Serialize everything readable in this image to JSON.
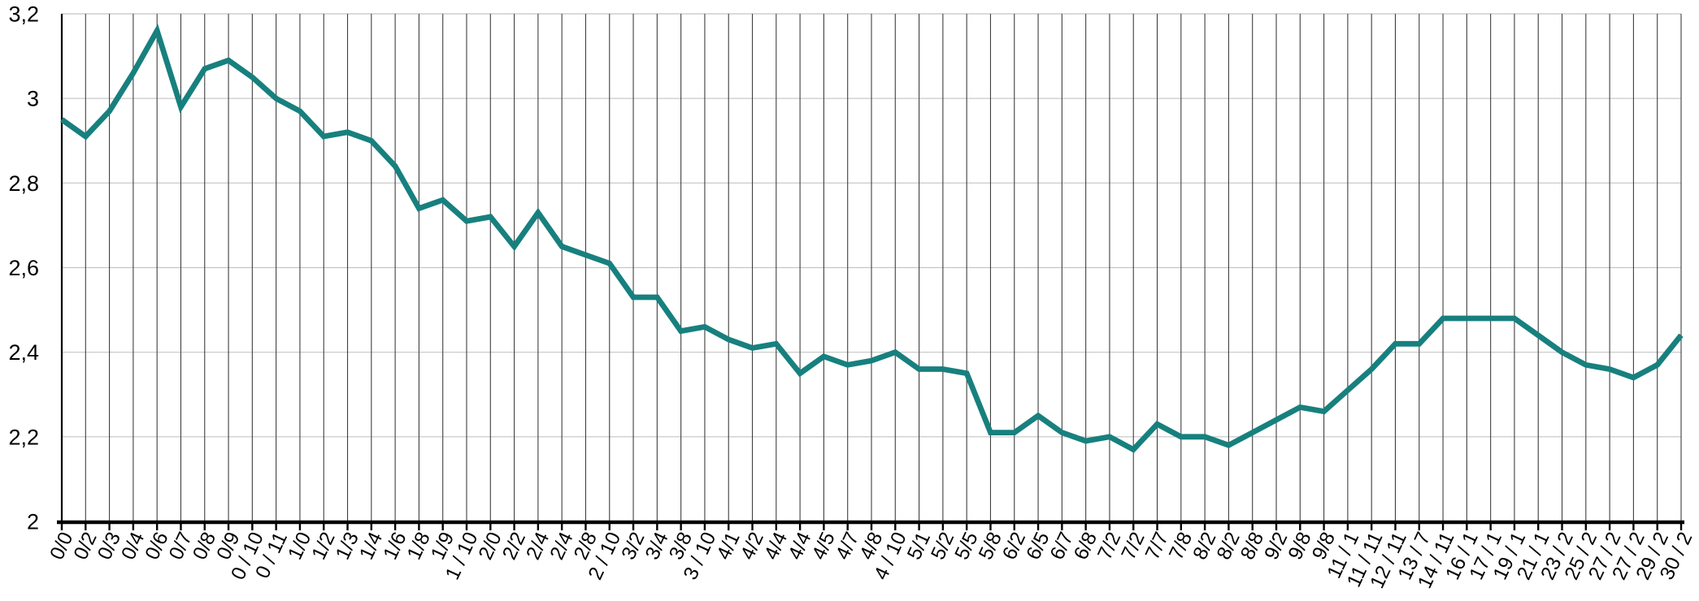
{
  "chart_data": {
    "type": "line",
    "title": "",
    "xlabel": "",
    "ylabel": "",
    "legend": "none",
    "ylim": [
      2,
      3.2
    ],
    "grid": {
      "vertical": true,
      "horizontal": true
    },
    "y_axis": {
      "tick_values": [
        2,
        2.2,
        2.4,
        2.6,
        2.8,
        3,
        3.2
      ],
      "tick_labels": [
        "2",
        "2,2",
        "2,4",
        "2,6",
        "2,8",
        "3",
        "3,2"
      ],
      "decimal_separator": ","
    },
    "categories": [
      "0/0",
      "0/2",
      "0/3",
      "0/4",
      "0/6",
      "0/7",
      "0/8",
      "0/9",
      "0 / 10",
      "0 / 11",
      "1/0",
      "1/2",
      "1/3",
      "1/4",
      "1/6",
      "1/8",
      "1/9",
      "1 / 10",
      "2/0",
      "2/2",
      "2/4",
      "2/4",
      "2/8",
      "2 / 10",
      "3/2",
      "3/4",
      "3/8",
      "3 / 10",
      "4/1",
      "4/2",
      "4/4",
      "4/4",
      "4/5",
      "4/7",
      "4/8",
      "4 / 10",
      "5/1",
      "5/2",
      "5/5",
      "5/8",
      "6/2",
      "6/5",
      "6/7",
      "6/8",
      "7/2",
      "7/2",
      "7/7",
      "7/8",
      "8/2",
      "8/2",
      "8/8",
      "9/2",
      "9/8",
      "9/8",
      "11 / 1",
      "11 / 11",
      "12 / 11",
      "13 / 7",
      "14 / 11",
      "16 / 1",
      "17 / 1",
      "19 / 1",
      "21 / 1",
      "23 / 2",
      "25 / 2",
      "27 / 2",
      "27 / 2",
      "29 / 2",
      "30 / 2"
    ],
    "values": [
      2.95,
      2.91,
      2.97,
      3.06,
      3.16,
      2.98,
      3.07,
      3.09,
      3.05,
      3.0,
      2.97,
      2.91,
      2.92,
      2.9,
      2.84,
      2.74,
      2.76,
      2.71,
      2.72,
      2.65,
      2.73,
      2.65,
      2.63,
      2.61,
      2.53,
      2.53,
      2.45,
      2.46,
      2.43,
      2.41,
      2.42,
      2.35,
      2.39,
      2.37,
      2.38,
      2.4,
      2.36,
      2.36,
      2.35,
      2.21,
      2.21,
      2.25,
      2.21,
      2.19,
      2.2,
      2.17,
      2.23,
      2.2,
      2.2,
      2.18,
      2.21,
      2.24,
      2.27,
      2.26,
      2.31,
      2.36,
      2.42,
      2.42,
      2.48,
      2.48,
      2.48,
      2.48,
      2.44,
      2.4,
      2.37,
      2.36,
      2.34,
      2.37,
      2.44
    ],
    "colors": {
      "line": "#17807E",
      "vertical_grid": "#3F3F3F",
      "horizontal_grid": "#C4C4C4",
      "axis": "#000000",
      "label": "#000000"
    }
  }
}
